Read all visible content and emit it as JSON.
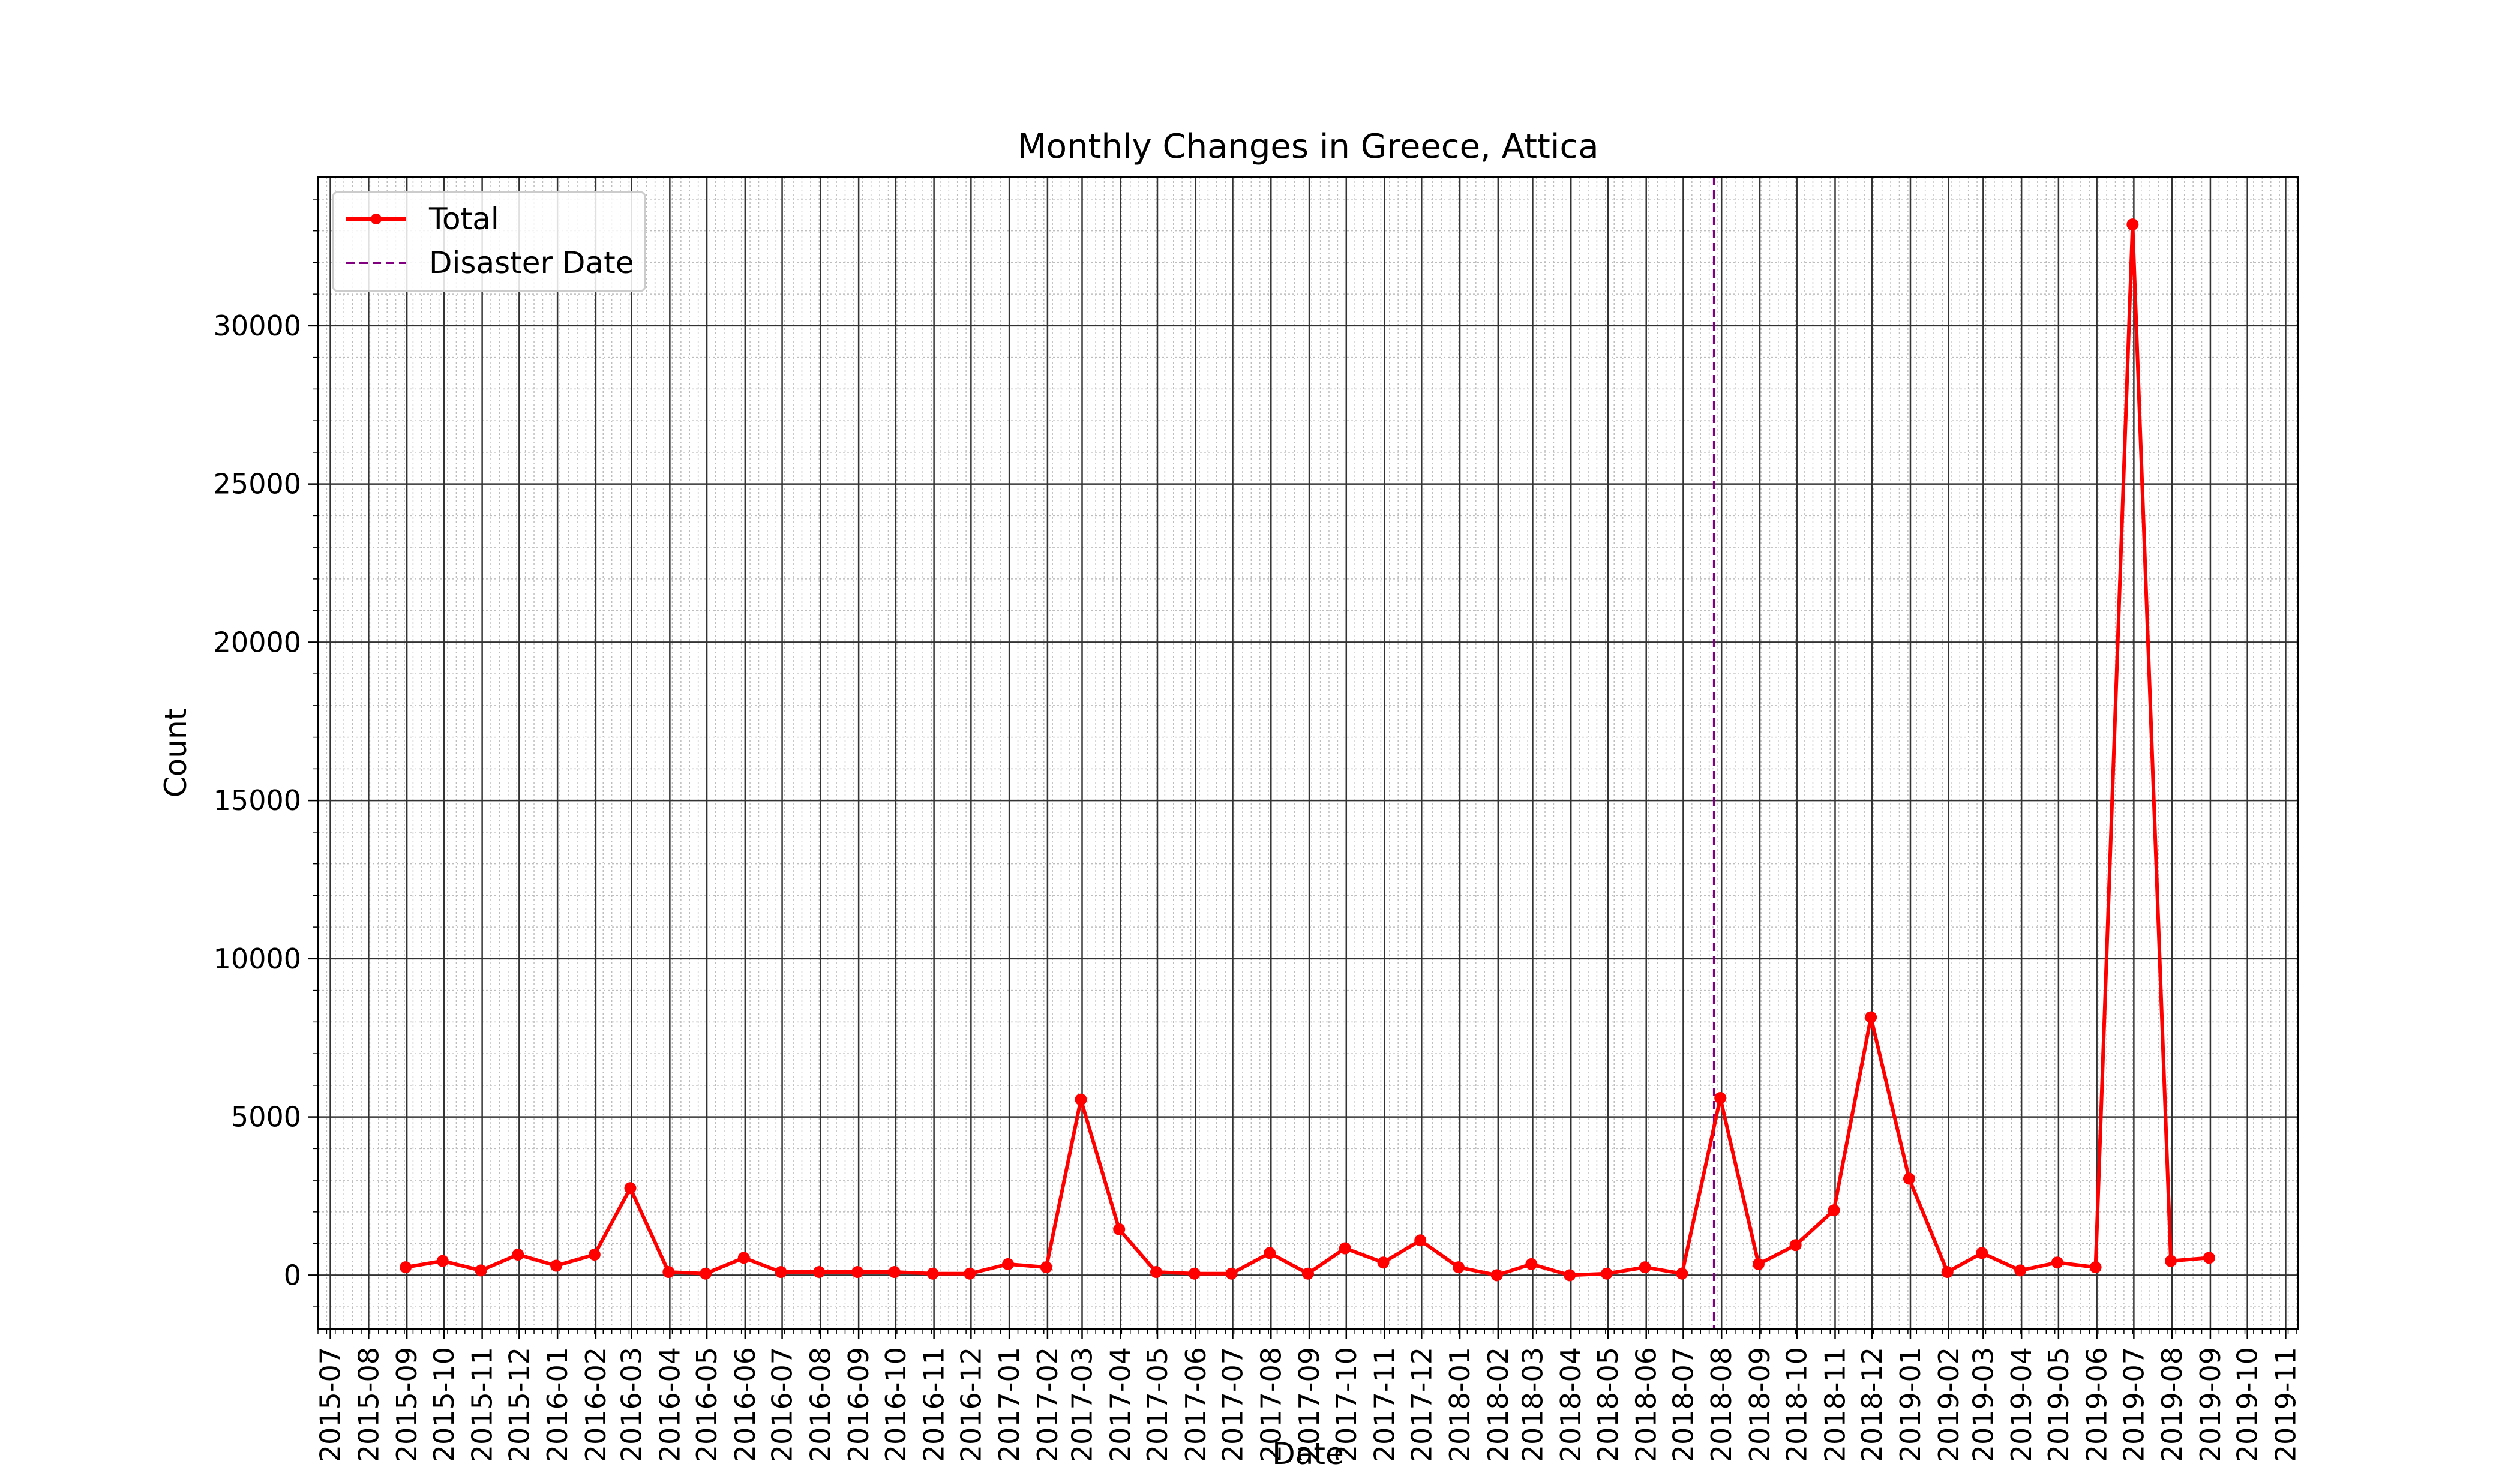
{
  "chart_data": {
    "type": "line",
    "title": "Monthly Changes in Greece, Attica",
    "xlabel": "Date",
    "ylabel": "Count",
    "x_range": [
      "2015-07",
      "2019-11"
    ],
    "ylim": [
      -1700,
      34700
    ],
    "y_ticks": [
      0,
      5000,
      10000,
      15000,
      20000,
      25000,
      30000
    ],
    "x_ticks": [
      "2015-07",
      "2015-08",
      "2015-09",
      "2015-10",
      "2015-11",
      "2015-12",
      "2016-01",
      "2016-02",
      "2016-03",
      "2016-04",
      "2016-05",
      "2016-06",
      "2016-07",
      "2016-08",
      "2016-09",
      "2016-10",
      "2016-11",
      "2016-12",
      "2017-01",
      "2017-02",
      "2017-03",
      "2017-04",
      "2017-05",
      "2017-06",
      "2017-07",
      "2017-08",
      "2017-09",
      "2017-10",
      "2017-11",
      "2017-12",
      "2018-01",
      "2018-02",
      "2018-03",
      "2018-04",
      "2018-05",
      "2018-06",
      "2018-07",
      "2018-08",
      "2018-09",
      "2018-10",
      "2018-11",
      "2018-12",
      "2019-01",
      "2019-02",
      "2019-03",
      "2019-04",
      "2019-05",
      "2019-06",
      "2019-07",
      "2019-08",
      "2019-09",
      "2019-10",
      "2019-11"
    ],
    "grid": true,
    "minor_grid": true,
    "legend_position": "upper-left",
    "series": [
      {
        "name": "Total",
        "color": "#ff0000",
        "marker": "circle",
        "x": [
          "2015-08-31",
          "2015-09-30",
          "2015-10-31",
          "2015-11-30",
          "2015-12-31",
          "2016-01-31",
          "2016-02-29",
          "2016-03-31",
          "2016-04-30",
          "2016-05-31",
          "2016-06-30",
          "2016-07-31",
          "2016-08-31",
          "2016-09-30",
          "2016-10-31",
          "2016-11-30",
          "2016-12-31",
          "2017-01-31",
          "2017-02-28",
          "2017-03-31",
          "2017-04-30",
          "2017-05-31",
          "2017-06-30",
          "2017-07-31",
          "2017-08-31",
          "2017-09-30",
          "2017-10-31",
          "2017-11-30",
          "2017-12-31",
          "2018-01-31",
          "2018-02-28",
          "2018-03-31",
          "2018-04-30",
          "2018-05-31",
          "2018-06-30",
          "2018-07-31",
          "2018-08-31",
          "2018-09-30",
          "2018-10-31",
          "2018-11-30",
          "2018-12-31",
          "2019-01-31",
          "2019-02-28",
          "2019-03-31",
          "2019-04-30",
          "2019-05-31",
          "2019-06-30",
          "2019-07-31",
          "2019-08-31"
        ],
        "values": [
          250,
          450,
          150,
          650,
          300,
          650,
          2750,
          100,
          50,
          550,
          100,
          100,
          100,
          100,
          50,
          50,
          350,
          250,
          5550,
          1450,
          100,
          50,
          50,
          700,
          50,
          850,
          400,
          1100,
          250,
          0,
          350,
          0,
          50,
          250,
          50,
          5600,
          350,
          950,
          2050,
          8150,
          3050,
          100,
          700,
          150,
          400,
          250,
          33200,
          450,
          550
        ]
      }
    ],
    "vlines": [
      {
        "name": "Disaster Date",
        "x": "2018-07-26",
        "color": "#800080",
        "style": "dashed"
      }
    ]
  }
}
